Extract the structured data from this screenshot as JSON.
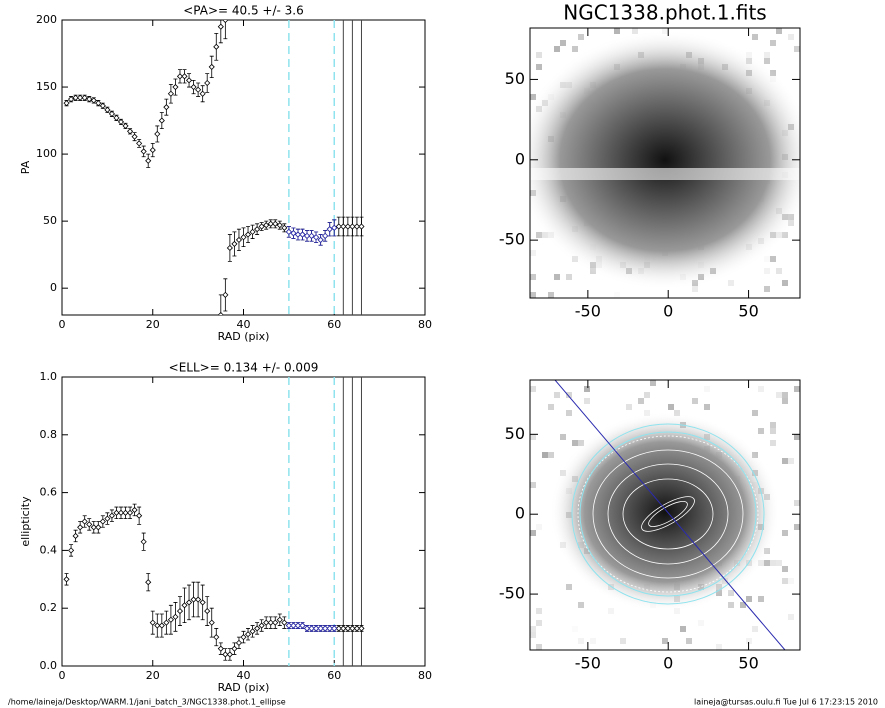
{
  "chart_data": [
    {
      "type": "errorbar",
      "title": "<PA>=  40.5 +/-   3.6",
      "xlabel": "RAD (pix)",
      "ylabel": "PA",
      "xlim": [
        0,
        80
      ],
      "ylim": [
        -20,
        200
      ],
      "xticks": [
        0,
        20,
        40,
        60,
        80
      ],
      "yticks": [
        0,
        50,
        100,
        150,
        200
      ],
      "vlines": [
        {
          "x": 50,
          "color": "#8fe3ee",
          "dashed": true
        },
        {
          "x": 60,
          "color": "#8fe3ee",
          "dashed": true
        },
        {
          "x": 62,
          "color": "#444444",
          "dashed": false
        },
        {
          "x": 64,
          "color": "#444444",
          "dashed": false
        },
        {
          "x": 66,
          "color": "#444444",
          "dashed": false
        }
      ],
      "series": [
        {
          "color": "#000000",
          "x": [
            1,
            2,
            3,
            4,
            5,
            6,
            7,
            8,
            9,
            10,
            11,
            12,
            13,
            14,
            15,
            16,
            17,
            18,
            19,
            20,
            21,
            22,
            23,
            24,
            25,
            26,
            27,
            28,
            29,
            30,
            31,
            32,
            33,
            34,
            35,
            36
          ],
          "values": [
            138,
            141,
            142,
            142,
            142,
            141,
            140,
            138,
            136,
            133,
            130,
            127,
            124,
            121,
            117,
            113,
            108,
            102,
            95,
            103,
            115,
            125,
            135,
            145,
            150,
            158,
            158,
            155,
            150,
            148,
            145,
            153,
            165,
            180,
            195,
            200
          ],
          "errors": [
            2,
            2,
            2,
            2,
            2,
            2,
            2,
            2,
            2,
            2,
            2,
            2,
            2,
            2,
            2,
            3,
            3,
            4,
            5,
            5,
            6,
            6,
            6,
            7,
            6,
            5,
            5,
            5,
            5,
            5,
            6,
            7,
            8,
            10,
            12,
            14
          ]
        },
        {
          "color": "#000000",
          "x": [
            35,
            36,
            37,
            38,
            39,
            40,
            41,
            42,
            43,
            44,
            45,
            46,
            47,
            48,
            49,
            50,
            51,
            52,
            53,
            54,
            55,
            56,
            57,
            58,
            59,
            60,
            61,
            62,
            63,
            64,
            65,
            66
          ],
          "values": [
            -20,
            -5,
            30,
            33,
            36,
            38,
            40,
            42,
            44,
            46,
            47,
            48,
            48,
            47,
            45,
            42,
            41,
            40,
            40,
            39,
            39,
            38,
            36,
            39,
            44,
            45,
            46,
            46,
            46,
            46,
            46,
            46
          ],
          "errors": [
            15,
            12,
            10,
            9,
            8,
            7,
            6,
            5,
            4,
            3,
            3,
            3,
            3,
            3,
            3,
            4,
            4,
            4,
            4,
            4,
            4,
            4,
            4,
            4,
            5,
            6,
            7,
            7,
            7,
            7,
            7,
            7
          ]
        },
        {
          "color": "#2b2bb0",
          "x": [
            50,
            51,
            52,
            53,
            54,
            55,
            56,
            57,
            58,
            59,
            60
          ],
          "values": [
            42,
            41,
            40,
            40,
            39,
            39,
            38,
            36,
            39,
            44,
            45
          ],
          "errors": [
            4,
            4,
            4,
            4,
            4,
            4,
            4,
            4,
            4,
            5,
            6
          ]
        }
      ]
    },
    {
      "type": "errorbar",
      "title": "<ELL>= 0.134 +/-  0.009",
      "xlabel": "RAD (pix)",
      "ylabel": "ellipticity",
      "xlim": [
        0,
        80
      ],
      "ylim": [
        0,
        1
      ],
      "xticks": [
        0,
        20,
        40,
        60,
        80
      ],
      "yticks": [
        {
          "value": 0,
          "label": "0.0"
        },
        0.2,
        0.4,
        0.6,
        0.8,
        {
          "value": 1,
          "label": "1.0"
        }
      ],
      "vlines": [
        {
          "x": 50,
          "color": "#8fe3ee",
          "dashed": true
        },
        {
          "x": 60,
          "color": "#8fe3ee",
          "dashed": true
        },
        {
          "x": 62,
          "color": "#444444",
          "dashed": false
        },
        {
          "x": 64,
          "color": "#444444",
          "dashed": false
        },
        {
          "x": 66,
          "color": "#444444",
          "dashed": false
        }
      ],
      "series": [
        {
          "color": "#000000",
          "x": [
            1,
            2,
            3,
            4,
            5,
            6,
            7,
            8,
            9,
            10,
            11,
            12,
            13,
            14,
            15,
            16,
            17,
            18,
            19,
            20,
            21,
            22,
            23,
            24,
            25,
            26,
            27,
            28,
            29,
            30,
            31,
            32,
            33,
            34,
            35,
            36,
            37,
            38,
            39,
            40,
            41,
            42,
            43,
            44,
            45,
            46,
            47,
            48,
            49,
            50,
            51,
            52,
            53,
            54,
            55,
            56,
            57,
            58,
            59,
            60,
            61,
            62,
            63,
            64,
            65,
            66
          ],
          "values": [
            0.3,
            0.4,
            0.45,
            0.48,
            0.5,
            0.49,
            0.48,
            0.48,
            0.5,
            0.51,
            0.52,
            0.53,
            0.53,
            0.53,
            0.53,
            0.54,
            0.52,
            0.43,
            0.29,
            0.15,
            0.14,
            0.14,
            0.15,
            0.16,
            0.17,
            0.19,
            0.21,
            0.22,
            0.23,
            0.23,
            0.22,
            0.19,
            0.15,
            0.1,
            0.06,
            0.04,
            0.04,
            0.06,
            0.08,
            0.1,
            0.11,
            0.12,
            0.13,
            0.14,
            0.15,
            0.15,
            0.15,
            0.16,
            0.15,
            0.14,
            0.14,
            0.14,
            0.14,
            0.13,
            0.13,
            0.13,
            0.13,
            0.13,
            0.13,
            0.13,
            0.13,
            0.13,
            0.13,
            0.13,
            0.13,
            0.13
          ],
          "errors": [
            0.02,
            0.02,
            0.02,
            0.02,
            0.02,
            0.02,
            0.02,
            0.02,
            0.02,
            0.02,
            0.02,
            0.02,
            0.02,
            0.02,
            0.02,
            0.02,
            0.03,
            0.03,
            0.03,
            0.04,
            0.04,
            0.04,
            0.04,
            0.05,
            0.05,
            0.05,
            0.06,
            0.06,
            0.06,
            0.06,
            0.06,
            0.05,
            0.05,
            0.03,
            0.02,
            0.02,
            0.02,
            0.02,
            0.02,
            0.02,
            0.02,
            0.02,
            0.02,
            0.02,
            0.02,
            0.02,
            0.02,
            0.02,
            0.02,
            0.01,
            0.01,
            0.01,
            0.01,
            0.01,
            0.01,
            0.01,
            0.01,
            0.01,
            0.01,
            0.01,
            0.01,
            0.01,
            0.01,
            0.01,
            0.01,
            0.01
          ]
        },
        {
          "color": "#2b2bb0",
          "x": [
            50,
            51,
            52,
            53,
            54,
            55,
            56,
            57,
            58,
            59,
            60
          ],
          "values": [
            0.14,
            0.14,
            0.14,
            0.14,
            0.13,
            0.13,
            0.13,
            0.13,
            0.13,
            0.13,
            0.13
          ],
          "errors": [
            0.01,
            0.01,
            0.01,
            0.01,
            0.01,
            0.01,
            0.01,
            0.01,
            0.01,
            0.01,
            0.01
          ]
        }
      ]
    },
    {
      "type": "image",
      "title": "NGC1338.phot.1.fits",
      "xlim": [
        -86,
        82
      ],
      "ylim": [
        -86,
        82
      ],
      "xticks": [
        -50,
        0,
        50
      ],
      "yticks": [
        -50,
        0,
        50
      ]
    },
    {
      "type": "image",
      "xlim": [
        -86,
        82
      ],
      "ylim": [
        -85,
        84
      ],
      "xticks": [
        -50,
        0,
        50
      ],
      "yticks": [
        -50,
        0,
        50
      ]
    }
  ],
  "footer": {
    "left": "/home/laineja/Desktop/WARM.1/jani_batch_3/NGC1338.phot.1_ellipse",
    "right": "laineja@tursas.oulu.fi  Tue Jul  6 17:23:15 2010"
  }
}
